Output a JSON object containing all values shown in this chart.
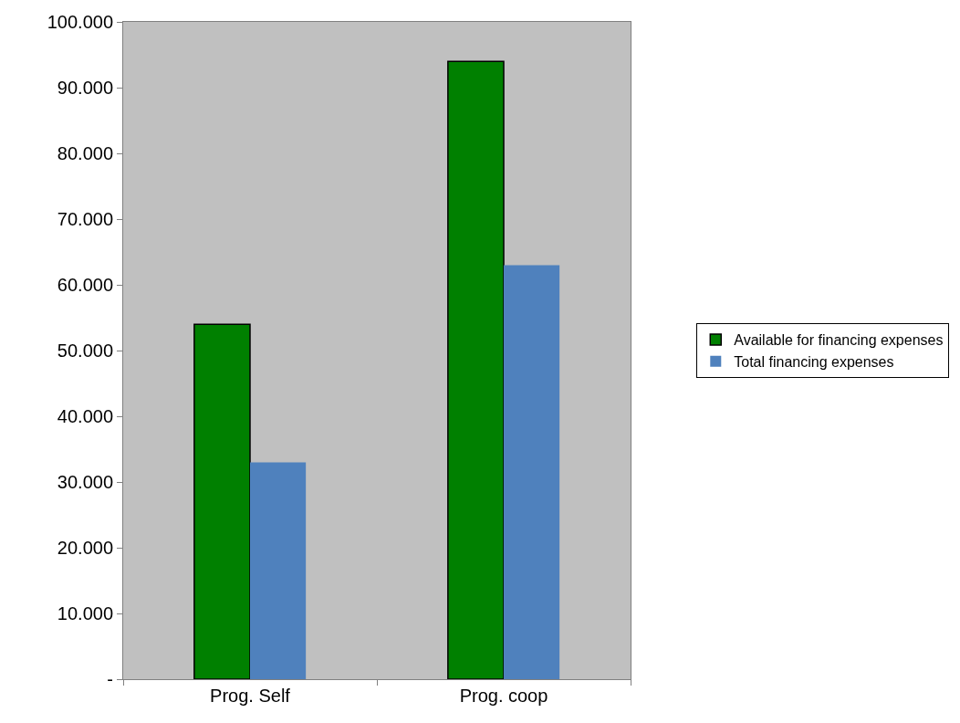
{
  "chart_data": {
    "type": "bar",
    "categories": [
      "Prog. Self",
      "Prog. coop"
    ],
    "series": [
      {
        "name": "Available for financing expenses",
        "color": "#008000",
        "values": [
          54000,
          94000
        ]
      },
      {
        "name": "Total financing expenses",
        "color": "#4f81bd",
        "values": [
          33000,
          63000
        ]
      }
    ],
    "ylim": [
      0,
      100000
    ],
    "yticks": [
      {
        "value": 0,
        "label": "-"
      },
      {
        "value": 10000,
        "label": "10.000"
      },
      {
        "value": 20000,
        "label": "20.000"
      },
      {
        "value": 30000,
        "label": "30.000"
      },
      {
        "value": 40000,
        "label": "40.000"
      },
      {
        "value": 50000,
        "label": "50.000"
      },
      {
        "value": 60000,
        "label": "60.000"
      },
      {
        "value": 70000,
        "label": "70.000"
      },
      {
        "value": 80000,
        "label": "80.000"
      },
      {
        "value": 90000,
        "label": "90.000"
      },
      {
        "value": 100000,
        "label": "100.000"
      }
    ],
    "grid": false,
    "legend": "right"
  }
}
